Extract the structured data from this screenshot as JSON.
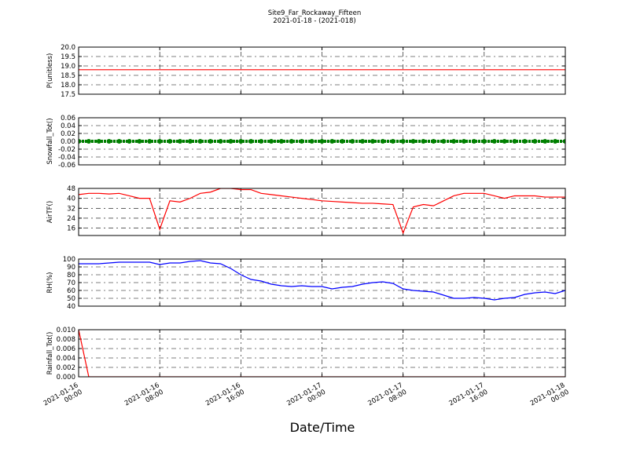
{
  "title": "Site9_Far_Rockaway_Fifteen",
  "subtitle": "2021-01-18 - (2021-018)",
  "xlabel": "Date/Time",
  "xlim": [
    "2021-01-16 00:00",
    "2021-01-18 00:00"
  ],
  "xticks": [
    "2021-01-16 00:00",
    "2021-01-16 08:00",
    "2021-01-16 16:00",
    "2021-01-17 00:00",
    "2021-01-17 08:00",
    "2021-01-17 16:00",
    "2021-01-18 00:00"
  ],
  "grid": true,
  "x": [
    "2021-01-16 00:00",
    "2021-01-16 01:00",
    "2021-01-16 02:00",
    "2021-01-16 03:00",
    "2021-01-16 04:00",
    "2021-01-16 05:00",
    "2021-01-16 06:00",
    "2021-01-16 07:00",
    "2021-01-16 08:00",
    "2021-01-16 09:00",
    "2021-01-16 10:00",
    "2021-01-16 11:00",
    "2021-01-16 12:00",
    "2021-01-16 13:00",
    "2021-01-16 14:00",
    "2021-01-16 15:00",
    "2021-01-16 16:00",
    "2021-01-16 17:00",
    "2021-01-16 18:00",
    "2021-01-16 19:00",
    "2021-01-16 20:00",
    "2021-01-16 21:00",
    "2021-01-16 22:00",
    "2021-01-16 23:00",
    "2021-01-17 00:00",
    "2021-01-17 01:00",
    "2021-01-17 02:00",
    "2021-01-17 03:00",
    "2021-01-17 04:00",
    "2021-01-17 05:00",
    "2021-01-17 06:00",
    "2021-01-17 07:00",
    "2021-01-17 08:00",
    "2021-01-17 09:00",
    "2021-01-17 10:00",
    "2021-01-17 11:00",
    "2021-01-17 12:00",
    "2021-01-17 13:00",
    "2021-01-17 14:00",
    "2021-01-17 15:00",
    "2021-01-17 16:00",
    "2021-01-17 17:00",
    "2021-01-17 18:00",
    "2021-01-17 19:00",
    "2021-01-17 20:00",
    "2021-01-17 21:00",
    "2021-01-17 22:00",
    "2021-01-17 23:00",
    "2021-01-18 00:00"
  ],
  "chart_data": [
    {
      "type": "line",
      "ylabel": "P(unitless)",
      "color": "#ff0000",
      "ylim": [
        17.5,
        20.0
      ],
      "yticks": [
        17.5,
        {
          "value": 18,
          "label": "18.0"
        },
        18.5,
        {
          "value": 19,
          "label": "19.0"
        },
        19.5,
        {
          "value": 20,
          "label": "20.0"
        }
      ],
      "values": [
        18.8,
        18.8,
        18.8,
        18.8,
        18.8,
        18.8,
        18.8,
        18.8,
        18.8,
        18.8,
        18.8,
        18.8,
        18.8,
        18.8,
        18.8,
        18.8,
        18.8,
        18.8,
        18.8,
        18.8,
        18.8,
        18.8,
        18.8,
        18.8,
        18.8,
        18.8,
        18.8,
        18.8,
        18.8,
        18.8,
        18.8,
        18.8,
        18.8,
        18.8,
        18.8,
        18.8,
        18.8,
        18.8,
        18.8,
        18.8,
        18.8,
        18.8,
        18.8,
        18.8,
        18.8,
        18.8,
        18.8,
        18.8,
        18.8
      ]
    },
    {
      "type": "scatter",
      "ylabel": "Snowfall_Tot()",
      "color": "#008000",
      "ylim": [
        -0.06,
        0.06
      ],
      "yticks": [
        -0.06,
        -0.04,
        -0.02,
        {
          "value": 0,
          "label": "0.00"
        },
        0.02,
        0.04,
        0.06
      ],
      "values": [
        0,
        0,
        0,
        0,
        0,
        0,
        0,
        0,
        0,
        0,
        0,
        0,
        0,
        0,
        0,
        0,
        0,
        0,
        0,
        0,
        0,
        0,
        0,
        0,
        0,
        0,
        0,
        0,
        0,
        0,
        0,
        0,
        0,
        0,
        0,
        0,
        0,
        0,
        0,
        0,
        0,
        0,
        0,
        0,
        0,
        0,
        0,
        0,
        0
      ]
    },
    {
      "type": "line",
      "ylabel": "AirTF()",
      "color": "#ff0000",
      "ylim": [
        10,
        48
      ],
      "yticks": [
        16,
        24,
        32,
        40,
        48
      ],
      "values": [
        43,
        44,
        44,
        43.5,
        44,
        42,
        40,
        40,
        15,
        38,
        37,
        40,
        44,
        45,
        48,
        48,
        47,
        47,
        44,
        43,
        42,
        41,
        40,
        39,
        38,
        37.5,
        37,
        36.5,
        36,
        36,
        35.5,
        35,
        12,
        33,
        35,
        34,
        38,
        42,
        44,
        44,
        44,
        42,
        40,
        42,
        42,
        42,
        41,
        41,
        41
      ]
    },
    {
      "type": "line",
      "ylabel": "RH(%)",
      "color": "#0000ff",
      "ylim": [
        40,
        100
      ],
      "yticks": [
        40,
        50,
        60,
        70,
        80,
        90,
        100
      ],
      "values": [
        94,
        94,
        94,
        95,
        96,
        96,
        96,
        96,
        93,
        95,
        95,
        97,
        98,
        95,
        94,
        88,
        80,
        74,
        72,
        68,
        66,
        65,
        66,
        65,
        65,
        62,
        64,
        65,
        68,
        70,
        71,
        69,
        62,
        60,
        59,
        58,
        54,
        50,
        50,
        51,
        50,
        48,
        50,
        51,
        55,
        57,
        58,
        56,
        60
      ]
    },
    {
      "type": "line",
      "ylabel": "Rainfall_Tot()",
      "color": "#ff0000",
      "ylim": [
        0,
        0.01
      ],
      "yticks": [
        {
          "value": 0,
          "label": "0.000"
        },
        {
          "value": 0.002,
          "label": "0.002"
        },
        {
          "value": 0.004,
          "label": "0.004"
        },
        {
          "value": 0.006,
          "label": "0.006"
        },
        {
          "value": 0.008,
          "label": "0.008"
        },
        {
          "value": 0.01,
          "label": "0.010"
        }
      ],
      "values": [
        0.01,
        0,
        0,
        0,
        0,
        0,
        0,
        0,
        0,
        0,
        0,
        0,
        0,
        0,
        0,
        0,
        0,
        0,
        0,
        0,
        0,
        0,
        0,
        0,
        0,
        0,
        0,
        0,
        0,
        0,
        0,
        0,
        0,
        0,
        0,
        0,
        0,
        0,
        0,
        0,
        0,
        0,
        0,
        0,
        0,
        0,
        0,
        0,
        0
      ]
    }
  ]
}
